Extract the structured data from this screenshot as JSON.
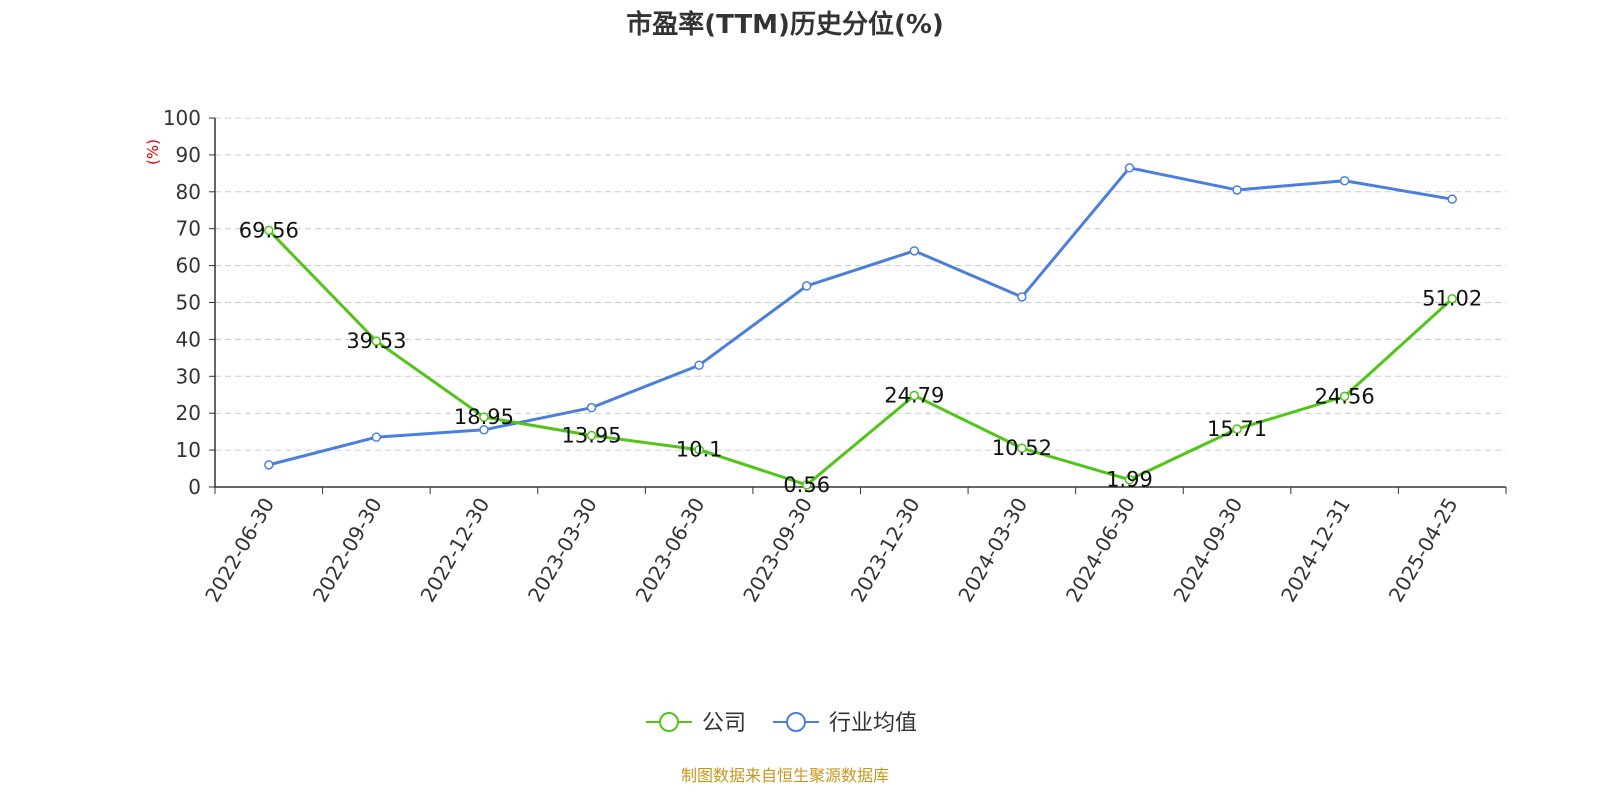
{
  "chart_data": {
    "type": "line",
    "title": "市盈率(TTM)历史分位(%)",
    "ylabel": "(%)",
    "xlabel": "",
    "ylim": [
      0,
      100
    ],
    "yticks": [
      0,
      10,
      20,
      30,
      40,
      50,
      60,
      70,
      80,
      90,
      100
    ],
    "grid": true,
    "legend_position": "bottom",
    "categories": [
      "2022-06-30",
      "2022-09-30",
      "2022-12-30",
      "2023-03-30",
      "2023-06-30",
      "2023-09-30",
      "2023-12-30",
      "2024-03-30",
      "2024-06-30",
      "2024-09-30",
      "2024-12-31",
      "2025-04-25"
    ],
    "series": [
      {
        "name": "公司",
        "color": "#52c41a",
        "show_labels": true,
        "values": [
          69.56,
          39.53,
          18.95,
          13.95,
          10.1,
          0.56,
          24.79,
          10.52,
          1.99,
          15.71,
          24.56,
          51.02
        ],
        "labels": [
          "69.56",
          "39.53",
          "18.95",
          "13.95",
          "10.1",
          "0.56",
          "24.79",
          "10.52",
          "1.99",
          "15.71",
          "24.56",
          "51.02"
        ]
      },
      {
        "name": "行业均值",
        "color": "#4a7fdb",
        "show_labels": false,
        "values": [
          6,
          13.5,
          15.5,
          21.5,
          33,
          54.5,
          64,
          51.5,
          86.5,
          80.5,
          83,
          78
        ]
      }
    ],
    "source": "制图数据来自恒生聚源数据库"
  }
}
